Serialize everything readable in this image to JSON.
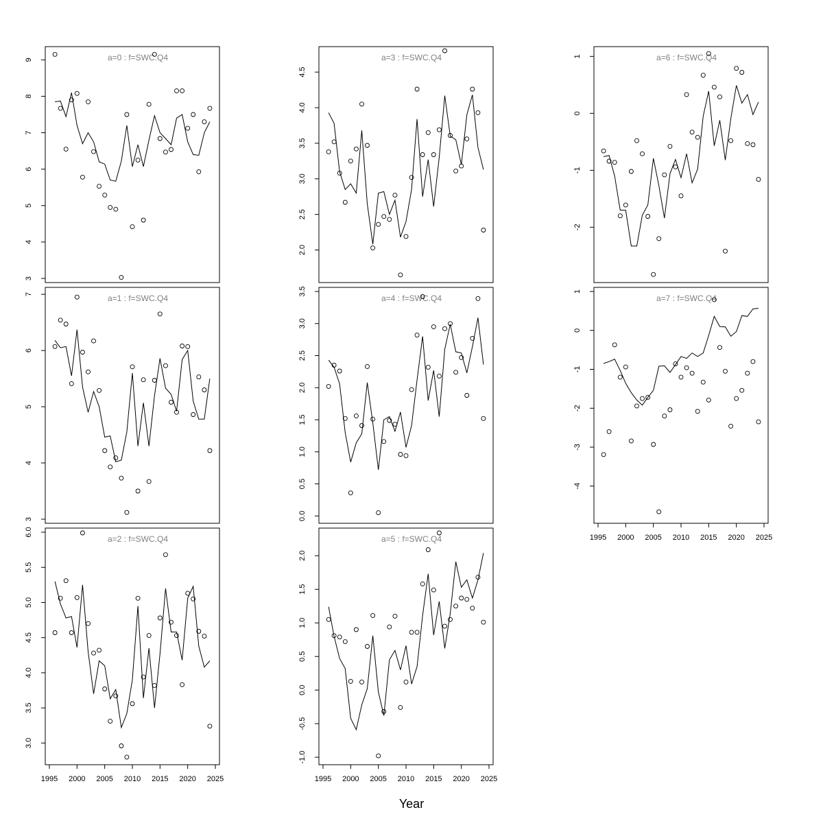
{
  "xlabel": "Year",
  "colors": {
    "line": "#000000",
    "points": "#000000",
    "title": "#808080",
    "background": "#ffffff"
  },
  "chart_data": [
    {
      "type": "scatter",
      "title": "a=0  :  f=SWC.Q4",
      "xlabel": "",
      "ylabel": "",
      "xlim": [
        1995,
        2025
      ],
      "ylim": [
        3,
        9.25
      ],
      "yticks": [
        3,
        4,
        5,
        6,
        7,
        8,
        9
      ],
      "xticks": [],
      "x": [
        1996,
        1997,
        1998,
        1999,
        2000,
        2001,
        2002,
        2003,
        2004,
        2005,
        2006,
        2007,
        2008,
        2009,
        2010,
        2011,
        2012,
        2013,
        2014,
        2015,
        2016,
        2017,
        2018,
        2019,
        2020,
        2021,
        2022,
        2023,
        2024
      ],
      "observed": [
        9.15,
        7.67,
        6.55,
        7.9,
        8.08,
        5.78,
        7.85,
        6.48,
        5.53,
        5.29,
        4.95,
        4.9,
        3.03,
        7.5,
        4.42,
        6.25,
        4.6,
        7.78,
        9.15,
        6.84,
        6.47,
        6.54,
        8.15,
        8.15,
        7.12,
        7.5,
        5.93,
        7.3,
        7.67
      ],
      "fitted": [
        7.85,
        7.87,
        7.44,
        8.1,
        7.2,
        6.7,
        7.0,
        6.75,
        6.2,
        6.14,
        5.7,
        5.67,
        6.22,
        7.2,
        6.07,
        6.67,
        6.07,
        6.8,
        7.47,
        7.0,
        6.84,
        6.67,
        7.4,
        7.5,
        6.75,
        6.4,
        6.38,
        7.0,
        7.3
      ]
    },
    {
      "type": "scatter",
      "title": "a=1  :  f=SWC.Q4",
      "xlabel": "",
      "ylabel": "",
      "xlim": [
        1995,
        2025
      ],
      "ylim": [
        3,
        7.05
      ],
      "yticks": [
        3,
        4,
        5,
        6,
        7
      ],
      "xticks": [],
      "x": [
        1996,
        1997,
        1998,
        1999,
        2000,
        2001,
        2002,
        2003,
        2004,
        2005,
        2006,
        2007,
        2008,
        2009,
        2010,
        2011,
        2012,
        2013,
        2014,
        2015,
        2016,
        2017,
        2018,
        2019,
        2020,
        2021,
        2022,
        2023,
        2024
      ],
      "observed": [
        6.07,
        6.54,
        6.47,
        5.41,
        6.95,
        5.97,
        5.62,
        6.17,
        5.29,
        4.22,
        3.93,
        4.09,
        3.73,
        3.12,
        5.71,
        3.5,
        5.48,
        3.67,
        5.47,
        6.65,
        5.73,
        5.08,
        4.9,
        6.08,
        6.07,
        4.86,
        5.53,
        5.3,
        4.22
      ],
      "fitted": [
        6.18,
        6.05,
        6.07,
        5.55,
        6.37,
        5.35,
        4.9,
        5.27,
        5.0,
        4.46,
        4.48,
        4.02,
        4.05,
        4.55,
        5.6,
        4.3,
        5.07,
        4.3,
        5.2,
        5.86,
        5.33,
        5.22,
        4.92,
        5.84,
        6.0,
        5.1,
        4.78,
        4.78,
        5.5
      ]
    },
    {
      "type": "scatter",
      "title": "a=2  :  f=SWC.Q4",
      "xlabel": "",
      "ylabel": "",
      "xlim": [
        1995,
        2025
      ],
      "ylim": [
        2.75,
        6.0
      ],
      "yticks": [
        3.0,
        3.5,
        4.0,
        4.5,
        5.0,
        5.5,
        6.0
      ],
      "xticks": [
        1995,
        2000,
        2005,
        2010,
        2015,
        2020,
        2025
      ],
      "x": [
        1996,
        1997,
        1998,
        1999,
        2000,
        2001,
        2002,
        2003,
        2004,
        2005,
        2006,
        2007,
        2008,
        2009,
        2010,
        2011,
        2012,
        2013,
        2014,
        2015,
        2016,
        2017,
        2018,
        2019,
        2020,
        2021,
        2022,
        2023,
        2024
      ],
      "observed": [
        4.57,
        5.06,
        5.31,
        4.57,
        5.07,
        5.99,
        4.7,
        4.28,
        4.32,
        3.77,
        3.31,
        3.67,
        2.96,
        2.8,
        3.56,
        5.06,
        3.94,
        4.53,
        3.82,
        4.78,
        5.68,
        4.72,
        4.53,
        3.83,
        5.13,
        5.05,
        4.59,
        4.52,
        3.24
      ],
      "fitted": [
        5.3,
        4.98,
        4.78,
        4.8,
        4.36,
        5.25,
        4.3,
        3.7,
        4.17,
        4.1,
        3.63,
        3.76,
        3.22,
        3.42,
        3.9,
        4.95,
        3.64,
        4.35,
        3.5,
        4.27,
        5.2,
        4.58,
        4.58,
        4.18,
        5.06,
        5.23,
        4.38,
        4.08,
        4.17
      ]
    },
    {
      "type": "scatter",
      "title": "a=3  :  f=SWC.Q4",
      "xlabel": "",
      "ylabel": "",
      "xlim": [
        1995,
        2025
      ],
      "ylim": [
        1.6,
        4.8
      ],
      "yticks": [
        2.0,
        2.5,
        3.0,
        3.5,
        4.0,
        4.5
      ],
      "xticks": [],
      "x": [
        1996,
        1997,
        1998,
        1999,
        2000,
        2001,
        2002,
        2003,
        2004,
        2005,
        2006,
        2007,
        2008,
        2009,
        2010,
        2011,
        2012,
        2013,
        2014,
        2015,
        2016,
        2017,
        2018,
        2019,
        2020,
        2021,
        2022,
        2023,
        2024
      ],
      "observed": [
        3.38,
        3.52,
        3.08,
        2.67,
        3.25,
        3.42,
        4.05,
        3.47,
        2.03,
        2.36,
        2.47,
        2.43,
        2.77,
        1.65,
        2.19,
        3.02,
        4.26,
        3.34,
        3.65,
        3.34,
        3.69,
        4.8,
        3.61,
        3.11,
        3.18,
        3.56,
        4.26,
        3.93,
        2.28
      ],
      "fitted": [
        3.93,
        3.78,
        3.1,
        2.85,
        2.93,
        2.8,
        3.68,
        2.65,
        2.08,
        2.8,
        2.82,
        2.5,
        2.7,
        2.18,
        2.4,
        2.85,
        3.84,
        2.75,
        3.27,
        2.61,
        3.3,
        4.17,
        3.6,
        3.55,
        3.2,
        3.9,
        4.18,
        3.44,
        3.13
      ]
    },
    {
      "type": "scatter",
      "title": "a=4  :  f=SWC.Q4",
      "xlabel": "",
      "ylabel": "",
      "xlim": [
        1995,
        2025
      ],
      "ylim": [
        -0.05,
        3.5
      ],
      "yticks": [
        0.0,
        0.5,
        1.0,
        1.5,
        2.0,
        2.5,
        3.0,
        3.5
      ],
      "xticks": [],
      "x": [
        1996,
        1997,
        1998,
        1999,
        2000,
        2001,
        2002,
        2003,
        2004,
        2005,
        2006,
        2007,
        2008,
        2009,
        2010,
        2011,
        2012,
        2013,
        2014,
        2015,
        2016,
        2017,
        2018,
        2019,
        2020,
        2021,
        2022,
        2023,
        2024
      ],
      "observed": [
        2.02,
        2.35,
        2.26,
        1.52,
        0.36,
        1.56,
        1.41,
        2.33,
        1.51,
        0.05,
        1.16,
        1.49,
        1.43,
        0.96,
        0.94,
        1.97,
        2.82,
        3.42,
        2.32,
        2.95,
        2.18,
        2.92,
        3.0,
        2.24,
        2.47,
        1.88,
        2.77,
        3.39,
        1.52
      ],
      "fitted": [
        2.43,
        2.32,
        2.06,
        1.3,
        0.84,
        1.14,
        1.28,
        2.08,
        1.45,
        0.72,
        1.5,
        1.55,
        1.32,
        1.62,
        1.07,
        1.41,
        2.12,
        2.8,
        1.8,
        2.27,
        1.55,
        2.6,
        2.99,
        2.56,
        2.54,
        2.23,
        2.64,
        3.09,
        2.36
      ]
    },
    {
      "type": "scatter",
      "title": "a=5  :  f=SWC.Q4",
      "xlabel": "",
      "ylabel": "",
      "xlim": [
        1995,
        2025
      ],
      "ylim": [
        -1.05,
        2.35
      ],
      "yticks": [
        -1.0,
        -0.5,
        0.0,
        0.5,
        1.0,
        1.5,
        2.0
      ],
      "xticks": [
        1995,
        2000,
        2005,
        2010,
        2015,
        2020,
        2025
      ],
      "x": [
        1996,
        1997,
        1998,
        1999,
        2000,
        2001,
        2002,
        2003,
        2004,
        2005,
        2006,
        2007,
        2008,
        2009,
        2010,
        2011,
        2012,
        2013,
        2014,
        2015,
        2016,
        2017,
        2018,
        2019,
        2020,
        2021,
        2022,
        2023,
        2024
      ],
      "observed": [
        1.05,
        0.81,
        0.79,
        0.72,
        0.13,
        0.9,
        0.12,
        0.65,
        1.11,
        -0.98,
        -0.32,
        0.94,
        1.1,
        -0.26,
        0.12,
        0.86,
        0.86,
        1.58,
        2.09,
        1.49,
        2.34,
        0.95,
        1.05,
        1.25,
        1.37,
        1.35,
        1.22,
        1.68,
        1.01
      ],
      "fitted": [
        1.24,
        0.8,
        0.47,
        0.32,
        -0.42,
        -0.59,
        -0.22,
        0.02,
        0.81,
        -0.03,
        -0.38,
        0.45,
        0.59,
        0.3,
        0.66,
        0.09,
        0.35,
        1.11,
        1.73,
        0.82,
        1.32,
        0.62,
        1.14,
        1.91,
        1.53,
        1.64,
        1.37,
        1.64,
        2.04
      ]
    },
    {
      "type": "scatter",
      "title": "a=6  :  f=SWC.Q4",
      "xlabel": "",
      "ylabel": "",
      "xlim": [
        1995,
        2025
      ],
      "ylim": [
        -2.9,
        1.1
      ],
      "yticks": [
        -2,
        -1,
        0,
        1
      ],
      "xticks": [],
      "x": [
        1996,
        1997,
        1998,
        1999,
        2000,
        2001,
        2002,
        2003,
        2004,
        2005,
        2006,
        2007,
        2008,
        2009,
        2010,
        2011,
        2012,
        2013,
        2014,
        2015,
        2016,
        2017,
        2018,
        2019,
        2020,
        2021,
        2022,
        2023,
        2024
      ],
      "observed": [
        -0.66,
        -0.84,
        -0.86,
        -1.8,
        -1.61,
        -1.02,
        -0.48,
        -0.71,
        -1.81,
        -2.83,
        -2.2,
        -1.08,
        -0.58,
        -0.94,
        -1.45,
        0.33,
        -0.33,
        -0.42,
        0.67,
        1.05,
        0.46,
        0.29,
        -2.42,
        -0.48,
        0.79,
        0.72,
        -0.53,
        -0.55,
        -1.16
      ],
      "fitted": [
        -0.76,
        -0.74,
        -1.1,
        -1.7,
        -1.7,
        -2.33,
        -2.33,
        -1.79,
        -1.61,
        -0.79,
        -1.27,
        -1.84,
        -1.06,
        -0.81,
        -1.13,
        -0.71,
        -1.22,
        -0.98,
        -0.05,
        0.39,
        -0.57,
        -0.12,
        -0.82,
        -0.09,
        0.49,
        0.18,
        0.33,
        -0.02,
        0.2
      ]
    },
    {
      "type": "scatter",
      "title": "a=7  :  f=SWC.Q4",
      "xlabel": "",
      "ylabel": "",
      "xlim": [
        1995,
        2025
      ],
      "ylim": [
        -4.85,
        1.0
      ],
      "yticks": [
        -4,
        -3,
        -2,
        -1,
        0,
        1
      ],
      "xticks": [
        1995,
        2000,
        2005,
        2010,
        2015,
        2020,
        2025
      ],
      "x": [
        1996,
        1997,
        1998,
        1999,
        2000,
        2001,
        2002,
        2003,
        2004,
        2005,
        2006,
        2007,
        2008,
        2009,
        2010,
        2011,
        2012,
        2013,
        2014,
        2015,
        2016,
        2017,
        2018,
        2019,
        2020,
        2021,
        2022,
        2023,
        2024
      ],
      "observed": [
        -3.19,
        -2.6,
        -0.37,
        -1.2,
        -0.94,
        -2.84,
        -1.94,
        -1.75,
        -1.72,
        -2.93,
        -4.66,
        -2.2,
        -2.04,
        -0.86,
        -1.2,
        -0.96,
        -1.1,
        -2.08,
        -1.33,
        -1.79,
        0.79,
        -0.44,
        -1.05,
        -2.46,
        -1.75,
        -1.54,
        -1.1,
        -0.8,
        -2.35
      ],
      "fitted": [
        -0.85,
        -0.8,
        -0.74,
        -1.03,
        -1.36,
        -1.6,
        -1.79,
        -1.92,
        -1.72,
        -1.54,
        -0.92,
        -0.91,
        -1.08,
        -0.88,
        -0.67,
        -0.72,
        -0.58,
        -0.67,
        -0.58,
        -0.13,
        0.36,
        0.1,
        0.09,
        -0.15,
        -0.03,
        0.38,
        0.36,
        0.55,
        0.57
      ]
    }
  ]
}
